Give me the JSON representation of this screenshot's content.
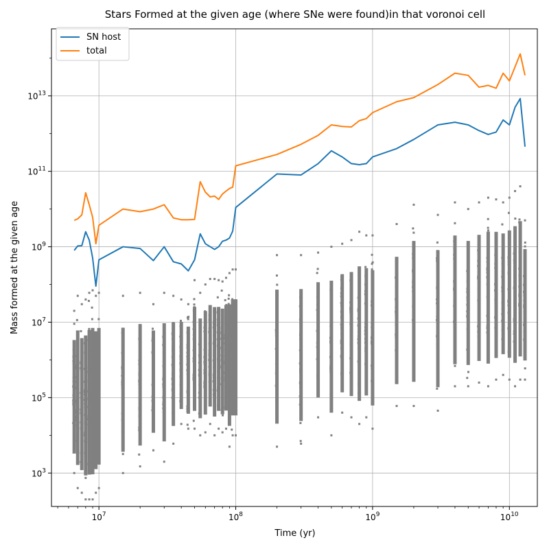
{
  "chart_data": {
    "type": "line",
    "title": "Stars Formed at the given age (where SNe were found)in that voronoi cell",
    "xlabel": "Time (yr)",
    "ylabel": "Mass formed at the given age",
    "xscale": "log",
    "yscale": "log",
    "xlim": [
      4500000.0,
      16000000000.0
    ],
    "ylim": [
      130.0,
      600000000000000.0
    ],
    "grid": true,
    "legend_position": "top-left",
    "xticks": [
      {
        "base": "10",
        "exp": "7",
        "value": 10000000.0
      },
      {
        "base": "10",
        "exp": "8",
        "value": 100000000.0
      },
      {
        "base": "10",
        "exp": "9",
        "value": 1000000000.0
      },
      {
        "base": "10",
        "exp": "10",
        "value": 10000000000.0
      }
    ],
    "yticks": [
      {
        "base": "10",
        "exp": "3",
        "value": 1000.0
      },
      {
        "base": "10",
        "exp": "5",
        "value": 100000.0
      },
      {
        "base": "10",
        "exp": "7",
        "value": 10000000.0
      },
      {
        "base": "10",
        "exp": "9",
        "value": 1000000000.0
      },
      {
        "base": "10",
        "exp": "11",
        "value": 100000000000.0
      },
      {
        "base": "10",
        "exp": "13",
        "value": 10000000000000.0
      }
    ],
    "series": [
      {
        "name": "SN host",
        "color": "#1f77b4",
        "points": [
          [
            6600000.0,
            800000000.0
          ],
          [
            7000000.0,
            1050000000.0
          ],
          [
            7500000.0,
            1070000000.0
          ],
          [
            8000000.0,
            2500000000.0
          ],
          [
            8500000.0,
            1500000000.0
          ],
          [
            9000000.0,
            500000000.0
          ],
          [
            9500000.0,
            90000000.0
          ],
          [
            10000000.0,
            450000000.0
          ],
          [
            15000000.0,
            1000000000.0
          ],
          [
            20000000.0,
            900000000.0
          ],
          [
            25000000.0,
            430000000.0
          ],
          [
            30000000.0,
            1000000000.0
          ],
          [
            35000000.0,
            400000000.0
          ],
          [
            40000000.0,
            350000000.0
          ],
          [
            45000000.0,
            230000000.0
          ],
          [
            50000000.0,
            450000000.0
          ],
          [
            55000000.0,
            2200000000.0
          ],
          [
            60000000.0,
            1200000000.0
          ],
          [
            70000000.0,
            850000000.0
          ],
          [
            75000000.0,
            1000000000.0
          ],
          [
            80000000.0,
            1400000000.0
          ],
          [
            85000000.0,
            1500000000.0
          ],
          [
            90000000.0,
            1700000000.0
          ],
          [
            95000000.0,
            2600000000.0
          ],
          [
            100000000.0,
            11000000000.0
          ],
          [
            200000000.0,
            85000000000.0
          ],
          [
            300000000.0,
            80000000000.0
          ],
          [
            400000000.0,
            160000000000.0
          ],
          [
            500000000.0,
            350000000000.0
          ],
          [
            600000000.0,
            240000000000.0
          ],
          [
            700000000.0,
            160000000000.0
          ],
          [
            800000000.0,
            150000000000.0
          ],
          [
            900000000.0,
            160000000000.0
          ],
          [
            1000000000.0,
            240000000000.0
          ],
          [
            1500000000.0,
            400000000000.0
          ],
          [
            2000000000.0,
            700000000000.0
          ],
          [
            3000000000.0,
            1700000000000.0
          ],
          [
            4000000000.0,
            2000000000000.0
          ],
          [
            5000000000.0,
            1700000000000.0
          ],
          [
            6000000000.0,
            1200000000000.0
          ],
          [
            7000000000.0,
            950000000000.0
          ],
          [
            8000000000.0,
            1100000000000.0
          ],
          [
            9000000000.0,
            2300000000000.0
          ],
          [
            10000000000.0,
            1700000000000.0
          ],
          [
            11000000000.0,
            5000000000000.0
          ],
          [
            12000000000.0,
            8500000000000.0
          ],
          [
            13000000000.0,
            450000000000.0
          ]
        ]
      },
      {
        "name": "total",
        "color": "#ff7f0e",
        "points": [
          [
            6600000.0,
            5000000000.0
          ],
          [
            7000000.0,
            5500000000.0
          ],
          [
            7500000.0,
            7000000000.0
          ],
          [
            8000000.0,
            27000000000.0
          ],
          [
            8500000.0,
            13000000000.0
          ],
          [
            9000000.0,
            6000000000.0
          ],
          [
            9500000.0,
            1200000000.0
          ],
          [
            10000000.0,
            3700000000.0
          ],
          [
            15000000.0,
            10000000000.0
          ],
          [
            20000000.0,
            8500000000.0
          ],
          [
            25000000.0,
            10000000000.0
          ],
          [
            30000000.0,
            13000000000.0
          ],
          [
            35000000.0,
            5800000000.0
          ],
          [
            40000000.0,
            5200000000.0
          ],
          [
            45000000.0,
            5200000000.0
          ],
          [
            50000000.0,
            5300000000.0
          ],
          [
            55000000.0,
            53000000000.0
          ],
          [
            60000000.0,
            28000000000.0
          ],
          [
            65000000.0,
            21000000000.0
          ],
          [
            70000000.0,
            22000000000.0
          ],
          [
            75000000.0,
            18000000000.0
          ],
          [
            80000000.0,
            25000000000.0
          ],
          [
            85000000.0,
            30000000000.0
          ],
          [
            90000000.0,
            35000000000.0
          ],
          [
            95000000.0,
            38000000000.0
          ],
          [
            100000000.0,
            140000000000.0
          ],
          [
            200000000.0,
            280000000000.0
          ],
          [
            300000000.0,
            520000000000.0
          ],
          [
            400000000.0,
            900000000000.0
          ],
          [
            500000000.0,
            1700000000000.0
          ],
          [
            600000000.0,
            1550000000000.0
          ],
          [
            700000000.0,
            1500000000000.0
          ],
          [
            800000000.0,
            2200000000000.0
          ],
          [
            900000000.0,
            2500000000000.0
          ],
          [
            1000000000.0,
            3600000000000.0
          ],
          [
            1500000000.0,
            7000000000000.0
          ],
          [
            2000000000.0,
            9000000000000.0
          ],
          [
            3000000000.0,
            20000000000000.0
          ],
          [
            4000000000.0,
            40000000000000.0
          ],
          [
            5000000000.0,
            35000000000000.0
          ],
          [
            6000000000.0,
            17000000000000.0
          ],
          [
            7000000000.0,
            19000000000000.0
          ],
          [
            8000000000.0,
            16000000000000.0
          ],
          [
            9000000000.0,
            40000000000000.0
          ],
          [
            10000000000.0,
            25000000000000.0
          ],
          [
            12000000000.0,
            130000000000000.0
          ],
          [
            13000000000.0,
            35000000000000.0
          ]
        ]
      },
      {
        "name": "",
        "type": "scatter",
        "color": "#808080",
        "columns": [
          {
            "x": 6600000.0,
            "ymin": 1000.0,
            "ymax": 20000000.0
          },
          {
            "x": 7000000.0,
            "ymin": 400,
            "ymax": 50000000.0
          },
          {
            "x": 7500000.0,
            "ymin": 300,
            "ymax": 30000000.0
          },
          {
            "x": 8000000.0,
            "ymin": 200,
            "ymax": 40000000.0
          },
          {
            "x": 8500000.0,
            "ymin": 200,
            "ymax": 60000000.0
          },
          {
            "x": 9000000.0,
            "ymin": 200,
            "ymax": 70000000.0
          },
          {
            "x": 9500000.0,
            "ymin": 300,
            "ymax": 50000000.0
          },
          {
            "x": 10000000.0,
            "ymin": 400,
            "ymax": 60000000.0
          },
          {
            "x": 15000000.0,
            "ymin": 1000.0,
            "ymax": 50000000.0
          },
          {
            "x": 20000000.0,
            "ymin": 1500.0,
            "ymax": 60000000.0
          },
          {
            "x": 25000000.0,
            "ymin": 4000.0,
            "ymax": 30000000.0
          },
          {
            "x": 30000000.0,
            "ymin": 2000.0,
            "ymax": 60000000.0
          },
          {
            "x": 35000000.0,
            "ymin": 6000.0,
            "ymax": 50000000.0
          },
          {
            "x": 40000000.0,
            "ymin": 20000.0,
            "ymax": 40000000.0
          },
          {
            "x": 45000000.0,
            "ymin": 15000.0,
            "ymax": 30000000.0
          },
          {
            "x": 50000000.0,
            "ymin": 15000.0,
            "ymax": 130000000.0
          },
          {
            "x": 55000000.0,
            "ymin": 10000.0,
            "ymax": 60000000.0
          },
          {
            "x": 60000000.0,
            "ymin": 12000.0,
            "ymax": 100000000.0
          },
          {
            "x": 65000000.0,
            "ymin": 20000.0,
            "ymax": 140000000.0
          },
          {
            "x": 70000000.0,
            "ymin": 10000.0,
            "ymax": 140000000.0
          },
          {
            "x": 75000000.0,
            "ymin": 15000.0,
            "ymax": 130000000.0
          },
          {
            "x": 80000000.0,
            "ymin": 12000.0,
            "ymax": 120000000.0
          },
          {
            "x": 85000000.0,
            "ymin": 15000.0,
            "ymax": 150000000.0
          },
          {
            "x": 90000000.0,
            "ymin": 5000.0,
            "ymax": 200000000.0
          },
          {
            "x": 95000000.0,
            "ymin": 10000.0,
            "ymax": 250000000.0
          },
          {
            "x": 100000000.0,
            "ymin": 10000.0,
            "ymax": 250000000.0
          },
          {
            "x": 200000000.0,
            "ymin": 5000.0,
            "ymax": 600000000.0
          },
          {
            "x": 300000000.0,
            "ymin": 6000.0,
            "ymax": 600000000.0
          },
          {
            "x": 400000000.0,
            "ymin": 30000.0,
            "ymax": 700000000.0
          },
          {
            "x": 500000000.0,
            "ymin": 10000.0,
            "ymax": 1000000000.0
          },
          {
            "x": 600000000.0,
            "ymin": 40000.0,
            "ymax": 1200000000.0
          },
          {
            "x": 700000000.0,
            "ymin": 30000.0,
            "ymax": 1500000000.0
          },
          {
            "x": 800000000.0,
            "ymin": 20000.0,
            "ymax": 2500000000.0
          },
          {
            "x": 900000000.0,
            "ymin": 30000.0,
            "ymax": 2000000000.0
          },
          {
            "x": 1000000000.0,
            "ymin": 15000.0,
            "ymax": 2000000000.0
          },
          {
            "x": 1500000000.0,
            "ymin": 60000.0,
            "ymax": 4000000000.0
          },
          {
            "x": 2000000000.0,
            "ymin": 60000.0,
            "ymax": 13000000000.0
          },
          {
            "x": 3000000000.0,
            "ymin": 45000.0,
            "ymax": 7000000000.0
          },
          {
            "x": 4000000000.0,
            "ymin": 200000.0,
            "ymax": 15000000000.0
          },
          {
            "x": 5000000000.0,
            "ymin": 200000.0,
            "ymax": 10000000000.0
          },
          {
            "x": 6000000000.0,
            "ymin": 250000.0,
            "ymax": 15000000000.0
          },
          {
            "x": 7000000000.0,
            "ymin": 200000.0,
            "ymax": 20000000000.0
          },
          {
            "x": 8000000000.0,
            "ymin": 300000.0,
            "ymax": 18000000000.0
          },
          {
            "x": 9000000000.0,
            "ymin": 400000.0,
            "ymax": 15000000000.0
          },
          {
            "x": 10000000000.0,
            "ymin": 300000.0,
            "ymax": 20000000000.0
          },
          {
            "x": 11000000000.0,
            "ymin": 200000.0,
            "ymax": 30000000000.0
          },
          {
            "x": 12000000000.0,
            "ymin": 300000.0,
            "ymax": 40000000000.0
          },
          {
            "x": 13000000000.0,
            "ymin": 300000.0,
            "ymax": 5000000000.0
          }
        ]
      }
    ]
  }
}
